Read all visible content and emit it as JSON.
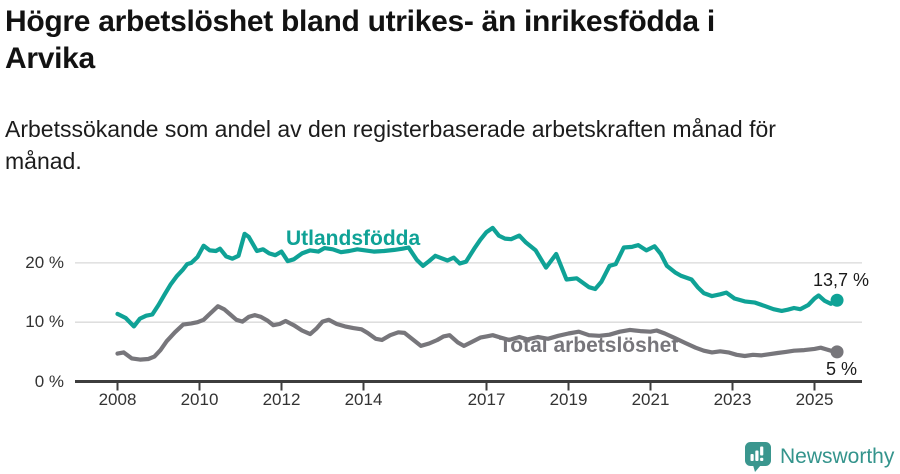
{
  "header": {
    "title_line1": "Högre arbetslöshet bland utrikes- än inrikesfödda i",
    "title_line2": "Arvika",
    "subtitle_line1": "Arbetssökande som andel av den registerbaserade arbetskraften månad för",
    "subtitle_line2": "månad."
  },
  "chart_data": {
    "type": "line",
    "title": "Högre arbetslöshet bland utrikes- än inrikesfödda i Arvika",
    "subtitle": "Arbetssökande som andel av den registerbaserade arbetskraften månad för månad.",
    "unit": "%",
    "x_range": [
      2008,
      2025.6
    ],
    "ylim": [
      0,
      27
    ],
    "yticks": [
      0,
      10,
      20
    ],
    "ytick_labels": [
      "0 %",
      "10 %",
      "20 %"
    ],
    "xticks": [
      2008,
      2010,
      2012,
      2014,
      2017,
      2019,
      2021,
      2023,
      2025
    ],
    "xtick_labels": [
      "2008",
      "2010",
      "2012",
      "2014",
      "2017",
      "2019",
      "2021",
      "2023",
      "2025"
    ],
    "grid": "horizontal-only",
    "legend_position": "inline-labels",
    "colors": {
      "grid": "#d9d9d9",
      "axis": "#3d3d3d",
      "axis_text": "#333333",
      "value_text": "#1a1a1a"
    },
    "series": [
      {
        "name": "Utlandsfödda",
        "color": "#0fa296",
        "end_label": "13,7 %",
        "end_value": 13.7,
        "points": [
          [
            2008.0,
            11.4
          ],
          [
            2008.2,
            10.7
          ],
          [
            2008.4,
            9.3
          ],
          [
            2008.55,
            10.6
          ],
          [
            2008.7,
            11.1
          ],
          [
            2008.85,
            11.3
          ],
          [
            2009.0,
            12.9
          ],
          [
            2009.15,
            14.7
          ],
          [
            2009.3,
            16.4
          ],
          [
            2009.45,
            17.8
          ],
          [
            2009.6,
            18.9
          ],
          [
            2009.7,
            19.8
          ],
          [
            2009.8,
            20.0
          ],
          [
            2009.95,
            21.0
          ],
          [
            2010.1,
            22.9
          ],
          [
            2010.25,
            22.1
          ],
          [
            2010.4,
            22.0
          ],
          [
            2010.5,
            22.4
          ],
          [
            2010.65,
            21.1
          ],
          [
            2010.8,
            20.7
          ],
          [
            2010.95,
            21.2
          ],
          [
            2011.1,
            24.9
          ],
          [
            2011.2,
            24.4
          ],
          [
            2011.4,
            22.0
          ],
          [
            2011.55,
            22.3
          ],
          [
            2011.7,
            21.6
          ],
          [
            2011.85,
            21.3
          ],
          [
            2012.0,
            21.9
          ],
          [
            2012.15,
            20.3
          ],
          [
            2012.3,
            20.6
          ],
          [
            2012.5,
            21.6
          ],
          [
            2012.7,
            22.1
          ],
          [
            2012.9,
            21.9
          ],
          [
            2013.05,
            22.5
          ],
          [
            2013.25,
            22.3
          ],
          [
            2013.45,
            21.8
          ],
          [
            2013.65,
            22.0
          ],
          [
            2013.85,
            22.3
          ],
          [
            2014.05,
            22.1
          ],
          [
            2014.25,
            21.9
          ],
          [
            2014.5,
            22.0
          ],
          [
            2014.75,
            22.2
          ],
          [
            2014.95,
            22.4
          ],
          [
            2015.1,
            22.6
          ],
          [
            2015.3,
            20.5
          ],
          [
            2015.45,
            19.5
          ],
          [
            2015.6,
            20.3
          ],
          [
            2015.75,
            21.2
          ],
          [
            2015.9,
            20.8
          ],
          [
            2016.05,
            20.4
          ],
          [
            2016.2,
            20.9
          ],
          [
            2016.35,
            19.9
          ],
          [
            2016.5,
            20.2
          ],
          [
            2016.7,
            22.4
          ],
          [
            2016.85,
            23.9
          ],
          [
            2017.0,
            25.2
          ],
          [
            2017.15,
            25.9
          ],
          [
            2017.3,
            24.6
          ],
          [
            2017.45,
            24.1
          ],
          [
            2017.6,
            24.0
          ],
          [
            2017.8,
            24.6
          ],
          [
            2017.95,
            23.5
          ],
          [
            2018.2,
            22.1
          ],
          [
            2018.45,
            19.2
          ],
          [
            2018.7,
            21.5
          ],
          [
            2018.95,
            17.2
          ],
          [
            2019.2,
            17.4
          ],
          [
            2019.5,
            15.9
          ],
          [
            2019.65,
            15.6
          ],
          [
            2019.8,
            16.8
          ],
          [
            2020.0,
            19.5
          ],
          [
            2020.15,
            19.8
          ],
          [
            2020.35,
            22.6
          ],
          [
            2020.55,
            22.7
          ],
          [
            2020.7,
            23.0
          ],
          [
            2020.9,
            22.1
          ],
          [
            2021.1,
            22.8
          ],
          [
            2021.25,
            21.5
          ],
          [
            2021.4,
            19.5
          ],
          [
            2021.6,
            18.4
          ],
          [
            2021.75,
            17.8
          ],
          [
            2022.0,
            17.2
          ],
          [
            2022.15,
            15.9
          ],
          [
            2022.3,
            14.9
          ],
          [
            2022.5,
            14.4
          ],
          [
            2022.7,
            14.7
          ],
          [
            2022.85,
            15.0
          ],
          [
            2023.05,
            14.0
          ],
          [
            2023.3,
            13.5
          ],
          [
            2023.55,
            13.3
          ],
          [
            2023.8,
            12.7
          ],
          [
            2024.0,
            12.2
          ],
          [
            2024.2,
            11.9
          ],
          [
            2024.35,
            12.1
          ],
          [
            2024.5,
            12.4
          ],
          [
            2024.65,
            12.2
          ],
          [
            2024.85,
            12.9
          ],
          [
            2025.0,
            14.0
          ],
          [
            2025.1,
            14.5
          ],
          [
            2025.25,
            13.6
          ],
          [
            2025.4,
            13.1
          ],
          [
            2025.55,
            13.7
          ]
        ]
      },
      {
        "name": "Total arbetslöshet",
        "color": "#77767b",
        "end_label": "5 %",
        "end_value": 5.0,
        "points": [
          [
            2008.0,
            4.7
          ],
          [
            2008.15,
            4.9
          ],
          [
            2008.35,
            3.9
          ],
          [
            2008.55,
            3.7
          ],
          [
            2008.75,
            3.8
          ],
          [
            2008.9,
            4.2
          ],
          [
            2009.05,
            5.3
          ],
          [
            2009.2,
            6.8
          ],
          [
            2009.4,
            8.3
          ],
          [
            2009.6,
            9.6
          ],
          [
            2009.8,
            9.8
          ],
          [
            2009.95,
            10.0
          ],
          [
            2010.1,
            10.4
          ],
          [
            2010.25,
            11.4
          ],
          [
            2010.45,
            12.7
          ],
          [
            2010.6,
            12.2
          ],
          [
            2010.75,
            11.3
          ],
          [
            2010.9,
            10.4
          ],
          [
            2011.05,
            10.1
          ],
          [
            2011.2,
            10.9
          ],
          [
            2011.35,
            11.2
          ],
          [
            2011.5,
            10.9
          ],
          [
            2011.65,
            10.3
          ],
          [
            2011.8,
            9.5
          ],
          [
            2011.95,
            9.7
          ],
          [
            2012.1,
            10.2
          ],
          [
            2012.3,
            9.5
          ],
          [
            2012.5,
            8.6
          ],
          [
            2012.7,
            8.0
          ],
          [
            2012.85,
            8.9
          ],
          [
            2013.0,
            10.1
          ],
          [
            2013.15,
            10.4
          ],
          [
            2013.35,
            9.7
          ],
          [
            2013.55,
            9.3
          ],
          [
            2013.75,
            9.0
          ],
          [
            2013.95,
            8.8
          ],
          [
            2014.1,
            8.2
          ],
          [
            2014.3,
            7.2
          ],
          [
            2014.45,
            7.0
          ],
          [
            2014.65,
            7.8
          ],
          [
            2014.85,
            8.3
          ],
          [
            2015.0,
            8.2
          ],
          [
            2015.2,
            7.1
          ],
          [
            2015.4,
            6.0
          ],
          [
            2015.6,
            6.4
          ],
          [
            2015.8,
            7.0
          ],
          [
            2015.95,
            7.6
          ],
          [
            2016.1,
            7.8
          ],
          [
            2016.3,
            6.6
          ],
          [
            2016.45,
            6.0
          ],
          [
            2016.65,
            6.7
          ],
          [
            2016.85,
            7.4
          ],
          [
            2017.0,
            7.6
          ],
          [
            2017.15,
            7.8
          ],
          [
            2017.35,
            7.4
          ],
          [
            2017.55,
            7.0
          ],
          [
            2017.8,
            7.5
          ],
          [
            2018.0,
            7.1
          ],
          [
            2018.25,
            7.5
          ],
          [
            2018.5,
            7.2
          ],
          [
            2018.75,
            7.7
          ],
          [
            2019.0,
            8.1
          ],
          [
            2019.25,
            8.4
          ],
          [
            2019.5,
            7.8
          ],
          [
            2019.75,
            7.7
          ],
          [
            2020.0,
            7.9
          ],
          [
            2020.25,
            8.4
          ],
          [
            2020.5,
            8.7
          ],
          [
            2020.75,
            8.5
          ],
          [
            2021.0,
            8.4
          ],
          [
            2021.15,
            8.6
          ],
          [
            2021.35,
            8.1
          ],
          [
            2021.6,
            7.3
          ],
          [
            2021.85,
            6.5
          ],
          [
            2022.1,
            5.7
          ],
          [
            2022.3,
            5.2
          ],
          [
            2022.5,
            4.9
          ],
          [
            2022.7,
            5.1
          ],
          [
            2022.9,
            4.9
          ],
          [
            2023.1,
            4.5
          ],
          [
            2023.3,
            4.3
          ],
          [
            2023.5,
            4.5
          ],
          [
            2023.7,
            4.4
          ],
          [
            2023.9,
            4.6
          ],
          [
            2024.1,
            4.8
          ],
          [
            2024.3,
            5.0
          ],
          [
            2024.5,
            5.2
          ],
          [
            2024.75,
            5.3
          ],
          [
            2025.0,
            5.5
          ],
          [
            2025.15,
            5.7
          ],
          [
            2025.3,
            5.4
          ],
          [
            2025.45,
            5.1
          ],
          [
            2025.55,
            5.0
          ]
        ]
      }
    ]
  },
  "footer": {
    "brand": "Newsworthy",
    "brand_color": "#34948c",
    "logo_icon": "newsworthy-bubble-barchart-icon"
  }
}
